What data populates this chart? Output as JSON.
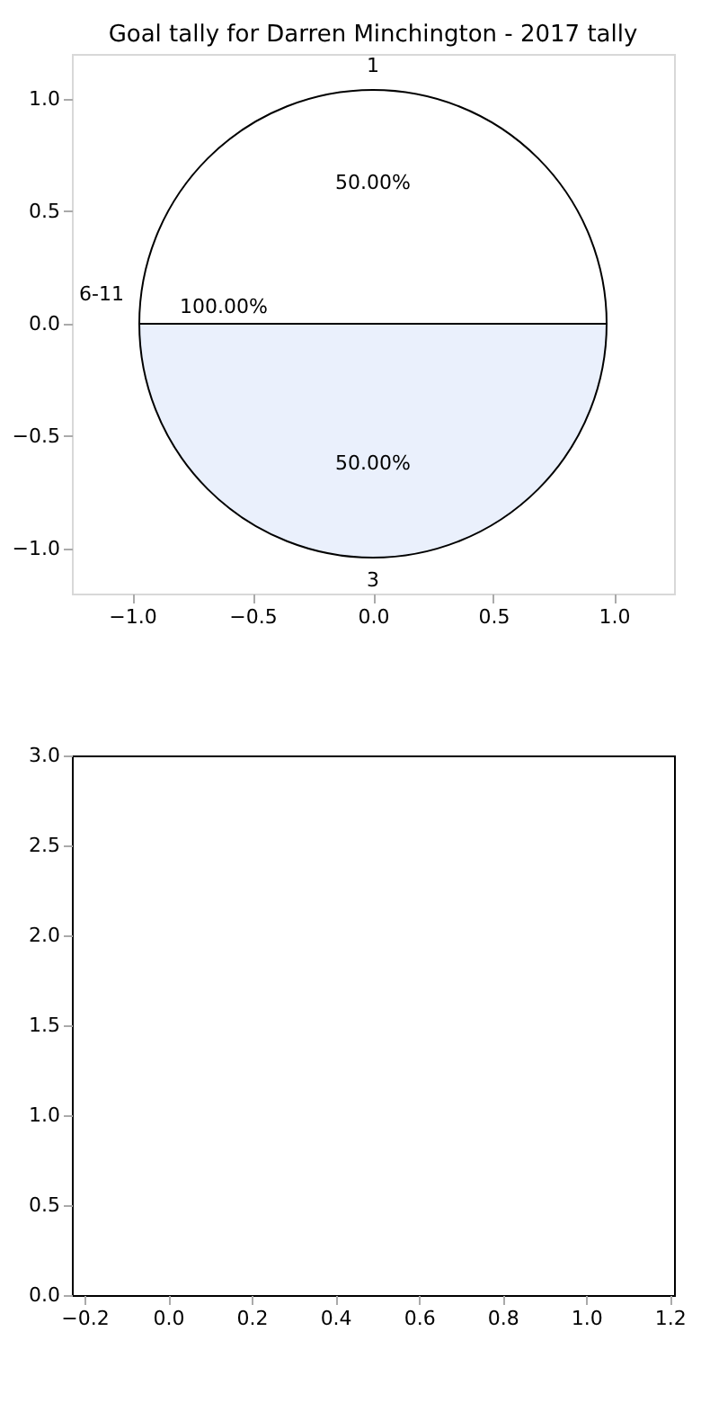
{
  "chart_data": [
    {
      "type": "pie",
      "title": "Goal tally for Darren Minchington - 2017 tally",
      "categories": [
        "1",
        "3"
      ],
      "values": [
        50,
        50
      ],
      "colors": [
        "#ffffff",
        "#eaf0fc"
      ],
      "value_labels": [
        "50.00%",
        "50.00%"
      ],
      "annotations": [
        "6-11",
        "100.00%"
      ]
    },
    {
      "type": "scatter",
      "xlim": [
        -1.25,
        1.25
      ],
      "xticks": [
        {
          "value": -1,
          "label": "−1.0"
        },
        {
          "value": -0.5,
          "label": "−0.5"
        },
        {
          "value": 0,
          "label": "0.0"
        },
        {
          "value": 0.5,
          "label": "0.5"
        },
        {
          "value": 1,
          "label": "1.0"
        }
      ],
      "ylim": [
        -1.2,
        1.2
      ],
      "yticks": [
        {
          "value": -1,
          "label": "−1.0"
        },
        {
          "value": -0.5,
          "label": "−0.5"
        },
        {
          "value": 0,
          "label": "0.0"
        },
        {
          "value": 0.5,
          "label": "0.5"
        },
        {
          "value": 1,
          "label": "1.0"
        }
      ]
    },
    {
      "type": "scatter",
      "xlim": [
        -0.23,
        1.21
      ],
      "xticks": [
        {
          "value": -0.2,
          "label": "−0.2"
        },
        {
          "value": 0,
          "label": "0.0"
        },
        0.2,
        0.4,
        0.6,
        0.8,
        {
          "value": 1,
          "label": "1.0"
        },
        1.2
      ],
      "ylim": [
        0,
        3
      ],
      "yticks": [
        {
          "value": 0,
          "label": "0.0"
        },
        0.5,
        {
          "value": 1,
          "label": "1.0"
        },
        1.5,
        {
          "value": 2,
          "label": "2.0"
        },
        2.5,
        {
          "value": 3,
          "label": "3.0"
        }
      ]
    }
  ]
}
